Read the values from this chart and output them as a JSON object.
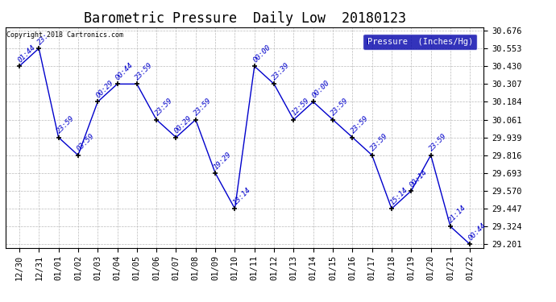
{
  "title": "Barometric Pressure  Daily Low  20180123",
  "ylabel": "Pressure  (Inches/Hg)",
  "copyright": "Copyright 2018 Cartronics.com",
  "line_color": "#0000CC",
  "marker_color": "#000000",
  "legend_bg": "#0000AA",
  "legend_text_color": "#FFFFFF",
  "background_color": "#FFFFFF",
  "grid_color": "#BBBBBB",
  "x_labels": [
    "12/30",
    "12/31",
    "01/01",
    "01/02",
    "01/03",
    "01/04",
    "01/05",
    "01/06",
    "01/07",
    "01/08",
    "01/09",
    "01/10",
    "01/11",
    "01/12",
    "01/13",
    "01/14",
    "01/15",
    "01/16",
    "01/17",
    "01/18",
    "01/19",
    "01/20",
    "01/21",
    "01/22"
  ],
  "x_values": [
    0,
    1,
    2,
    3,
    4,
    5,
    6,
    7,
    8,
    9,
    10,
    11,
    12,
    13,
    14,
    15,
    16,
    17,
    18,
    19,
    20,
    21,
    22,
    23
  ],
  "y_values": [
    30.43,
    30.553,
    29.939,
    29.816,
    30.184,
    30.307,
    30.307,
    30.061,
    29.939,
    30.061,
    29.693,
    29.447,
    30.43,
    30.307,
    30.061,
    30.184,
    30.061,
    29.939,
    29.816,
    29.447,
    29.57,
    29.816,
    29.324,
    29.201
  ],
  "point_labels": [
    "01:44",
    "23:",
    "23:59",
    "03:59",
    "00:29",
    "00:44",
    "23:59",
    "23:59",
    "00:29",
    "23:59",
    "19:29",
    "13:14",
    "00:00",
    "23:39",
    "12:59",
    "00:00",
    "23:59",
    "23:59",
    "23:59",
    "15:14",
    "00:14",
    "23:59",
    "21:14",
    "00:44"
  ],
  "ylim_min": 29.178,
  "ylim_max": 30.699,
  "yticks": [
    29.201,
    29.324,
    29.447,
    29.57,
    29.693,
    29.816,
    29.939,
    30.061,
    30.184,
    30.307,
    30.43,
    30.553,
    30.676
  ],
  "ytick_labels": [
    "29.201",
    "29.324",
    "29.447",
    "29.570",
    "29.693",
    "29.816",
    "29.939",
    "30.061",
    "30.184",
    "30.307",
    "30.430",
    "30.553",
    "30.676"
  ],
  "title_fontsize": 12,
  "axis_fontsize": 7.5,
  "label_fontsize": 6.5
}
